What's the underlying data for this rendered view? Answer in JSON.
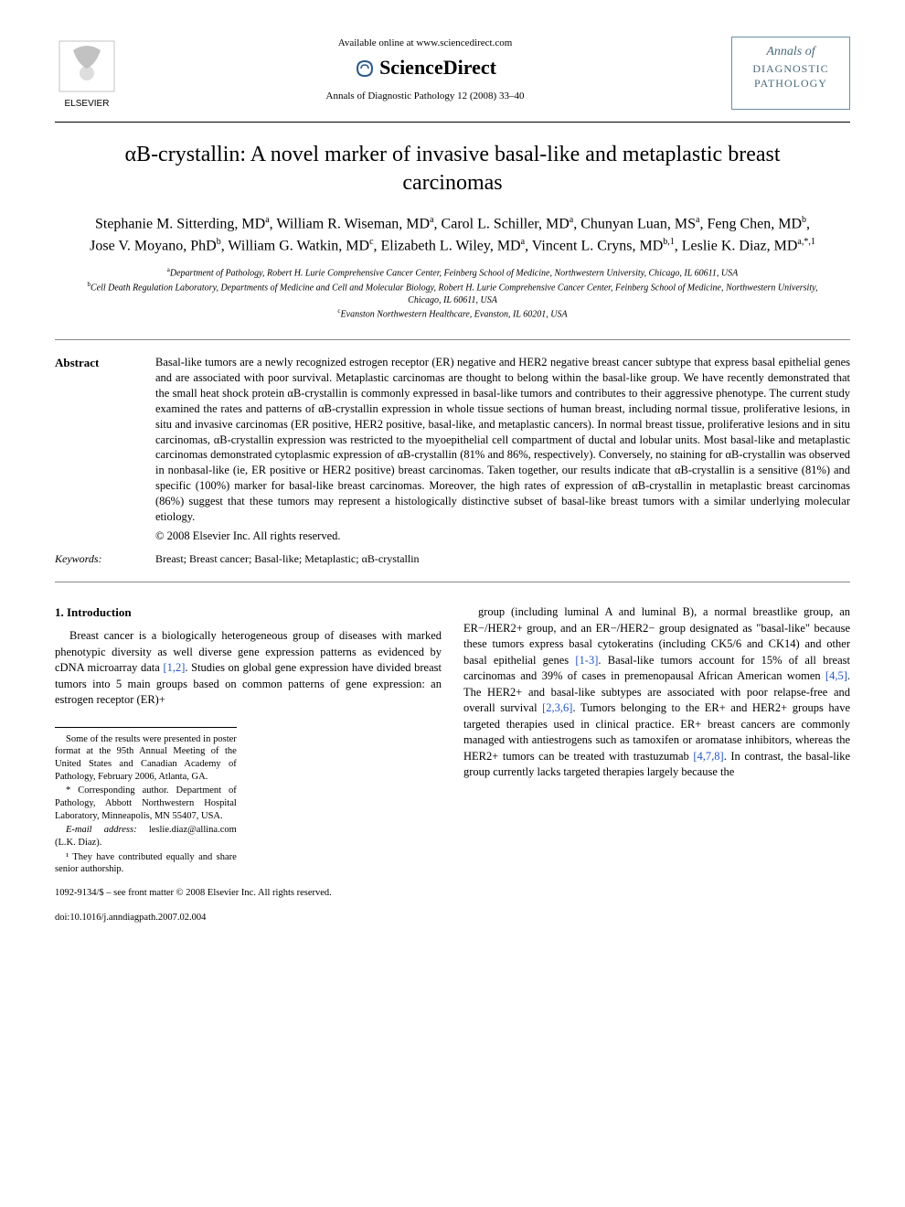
{
  "header": {
    "available_text": "Available online at www.sciencedirect.com",
    "sciencedirect_label": "ScienceDirect",
    "journal_citation": "Annals of Diagnostic Pathology 12 (2008) 33–40",
    "publisher_name": "ELSEVIER",
    "journal_box": {
      "line1": "Annals of",
      "line2": "DIAGNOSTIC",
      "line3": "PATHOLOGY"
    }
  },
  "article": {
    "title": "αB-crystallin: A novel marker of invasive basal-like and metaplastic breast carcinomas",
    "authors_html": "Stephanie M. Sitterding, MD<sup>a</sup>, William R. Wiseman, MD<sup>a</sup>, Carol L. Schiller, MD<sup>a</sup>, Chunyan Luan, MS<sup>a</sup>, Feng Chen, MD<sup>b</sup>, Jose V. Moyano, PhD<sup>b</sup>, William G. Watkin, MD<sup>c</sup>, Elizabeth L. Wiley, MD<sup>a</sup>, Vincent L. Cryns, MD<sup>b,1</sup>, Leslie K. Diaz, MD<sup>a,*,1</sup>",
    "affiliations": {
      "a": "Department of Pathology, Robert H. Lurie Comprehensive Cancer Center, Feinberg School of Medicine, Northwestern University, Chicago, IL 60611, USA",
      "b": "Cell Death Regulation Laboratory, Departments of Medicine and Cell and Molecular Biology, Robert H. Lurie Comprehensive Cancer Center, Feinberg School of Medicine, Northwestern University, Chicago, IL 60611, USA",
      "c": "Evanston Northwestern Healthcare, Evanston, IL 60201, USA"
    }
  },
  "abstract": {
    "label": "Abstract",
    "text": "Basal-like tumors are a newly recognized estrogen receptor (ER) negative and HER2 negative breast cancer subtype that express basal epithelial genes and are associated with poor survival. Metaplastic carcinomas are thought to belong within the basal-like group. We have recently demonstrated that the small heat shock protein αB-crystallin is commonly expressed in basal-like tumors and contributes to their aggressive phenotype. The current study examined the rates and patterns of αB-crystallin expression in whole tissue sections of human breast, including normal tissue, proliferative lesions, in situ and invasive carcinomas (ER positive, HER2 positive, basal-like, and metaplastic cancers). In normal breast tissue, proliferative lesions and in situ carcinomas, αB-crystallin expression was restricted to the myoepithelial cell compartment of ductal and lobular units. Most basal-like and metaplastic carcinomas demonstrated cytoplasmic expression of αB-crystallin (81% and 86%, respectively). Conversely, no staining for αB-crystallin was observed in nonbasal-like (ie, ER positive or HER2 positive) breast carcinomas. Taken together, our results indicate that αB-crystallin is a sensitive (81%) and specific (100%) marker for basal-like breast carcinomas. Moreover, the high rates of expression of αB-crystallin in metaplastic breast carcinomas (86%) suggest that these tumors may represent a histologically distinctive subset of basal-like breast tumors with a similar underlying molecular etiology.",
    "copyright": "© 2008 Elsevier Inc. All rights reserved."
  },
  "keywords": {
    "label": "Keywords:",
    "text": "Breast; Breast cancer; Basal-like; Metaplastic; αB-crystallin"
  },
  "body": {
    "section_heading": "1. Introduction",
    "col1_para": "Breast cancer is a biologically heterogeneous group of diseases with marked phenotypic diversity as well diverse gene expression patterns as evidenced by cDNA microarray data [1,2]. Studies on global gene expression have divided breast tumors into 5 main groups based on common patterns of gene expression: an estrogen receptor (ER)+",
    "col2_para": "group (including luminal A and luminal B), a normal breastlike group, an ER−/HER2+ group, and an ER−/HER2− group designated as \"basal-like\" because these tumors express basal cytokeratins (including CK5/6 and CK14) and other basal epithelial genes [1-3]. Basal-like tumors account for 15% of all breast carcinomas and 39% of cases in premenopausal African American women [4,5]. The HER2+ and basal-like subtypes are associated with poor relapse-free and overall survival [2,3,6]. Tumors belonging to the ER+ and HER2+ groups have targeted therapies used in clinical practice. ER+ breast cancers are commonly managed with antiestrogens such as tamoxifen or aromatase inhibitors, whereas the HER2+ tumors can be treated with trastuzumab [4,7,8]. In contrast, the basal-like group currently lacks targeted therapies largely because the",
    "refs_col1": "[1,2]",
    "refs_col2_a": "[1-3]",
    "refs_col2_b": "[4,5]",
    "refs_col2_c": "[2,3,6]",
    "refs_col2_d": "[4,7,8]"
  },
  "footnotes": {
    "note1": "Some of the results were presented in poster format at the 95th Annual Meeting of the United States and Canadian Academy of Pathology, February 2006, Atlanta, GA.",
    "note2": "* Corresponding author. Department of Pathology, Abbott Northwestern Hospital Laboratory, Minneapolis, MN 55407, USA.",
    "email_label": "E-mail address:",
    "email": "leslie.diaz@allina.com (L.K. Diaz).",
    "note3": "¹ They have contributed equally and share senior authorship."
  },
  "footer": {
    "line1": "1092-9134/$ – see front matter © 2008 Elsevier Inc. All rights reserved.",
    "line2": "doi:10.1016/j.anndiagpath.2007.02.004"
  },
  "colors": {
    "text": "#000000",
    "background": "#ffffff",
    "link": "#2255cc",
    "journal_box_border": "#6b8fa3",
    "journal_box_text": "#4a6b7d",
    "elsevier_orange": "#e67817"
  }
}
